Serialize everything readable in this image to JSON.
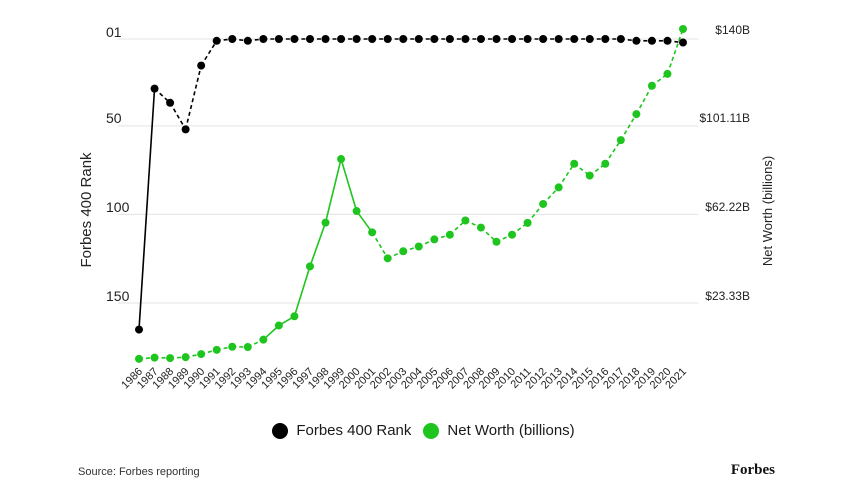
{
  "chart_data": {
    "type": "line",
    "x": [
      "1986",
      "1987",
      "1988",
      "1989",
      "1990",
      "1991",
      "1992",
      "1993",
      "1994",
      "1995",
      "1996",
      "1997",
      "1998",
      "1999",
      "2000",
      "2001",
      "2002",
      "2003",
      "2004",
      "2005",
      "2006",
      "2007",
      "2008",
      "2009",
      "2010",
      "2011",
      "2012",
      "2013",
      "2014",
      "2015",
      "2016",
      "2017",
      "2018",
      "2019",
      "2020",
      "2021"
    ],
    "left_axis": {
      "label": "Forbes 400 Rank",
      "ticks": [
        "01",
        "50",
        "100",
        "150"
      ],
      "range": [
        1,
        150
      ],
      "inverted": true
    },
    "right_axis": {
      "label": "Net Worth (billions)",
      "ticks": [
        "$140B",
        "$101.11B",
        "$62.22B",
        "$23.33B"
      ],
      "unit": "billions USD"
    },
    "series": [
      {
        "name": "Forbes 400 Rank",
        "color": "#000000",
        "axis": "left",
        "values": [
          165,
          29,
          37,
          52,
          16,
          2,
          1,
          2,
          1,
          1,
          1,
          1,
          1,
          1,
          1,
          1,
          1,
          1,
          1,
          1,
          1,
          1,
          1,
          1,
          1,
          1,
          1,
          1,
          1,
          1,
          1,
          1,
          2,
          2,
          2,
          3
        ]
      },
      {
        "name": "Net Worth (billions)",
        "color": "#1ec51e",
        "axis": "right",
        "values": [
          0.5,
          1.0,
          0.8,
          1.2,
          2.5,
          4.3,
          5.6,
          5.5,
          8.6,
          14.6,
          18.5,
          39.6,
          58.1,
          85,
          63,
          54,
          43,
          46,
          48,
          51,
          53,
          59,
          56,
          50,
          53,
          58,
          66,
          73,
          83,
          78,
          83,
          93,
          104,
          116,
          121,
          140
        ]
      }
    ],
    "grid": true,
    "legend_position": "bottom-center"
  },
  "legend": {
    "items": [
      {
        "label": "Forbes 400 Rank",
        "color": "#000000"
      },
      {
        "label": "Net Worth (billions)",
        "color": "#1ec51e"
      }
    ]
  },
  "footer": {
    "source": "Source: Forbes reporting",
    "brand": "Forbes"
  }
}
